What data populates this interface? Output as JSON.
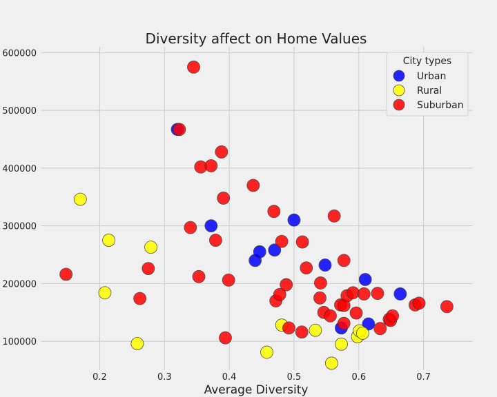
{
  "chart_data": {
    "type": "scatter",
    "title": "Diversity affect on Home Values",
    "xlabel": "Average Diversity",
    "ylabel": "",
    "xlim": [
      0.11,
      0.775
    ],
    "ylim": [
      50000,
      610000
    ],
    "xticks": [
      0.2,
      0.3,
      0.4,
      0.5,
      0.6,
      0.7
    ],
    "xtick_labels": [
      "0.2",
      "0.3",
      "0.4",
      "0.5",
      "0.6",
      "0.7"
    ],
    "yticks": [
      100000,
      200000,
      300000,
      400000,
      500000,
      600000
    ],
    "ytick_labels": [
      "100000",
      "200000",
      "300000",
      "400000",
      "500000",
      "600000"
    ],
    "grid": true,
    "legend": {
      "title": "City types",
      "position": "top-right"
    },
    "series": [
      {
        "name": "Urban",
        "color": "#0000ff",
        "points": [
          [
            0.32,
            467000
          ],
          [
            0.372,
            300000
          ],
          [
            0.44,
            240000
          ],
          [
            0.447,
            255000
          ],
          [
            0.47,
            258000
          ],
          [
            0.5,
            310000
          ],
          [
            0.548,
            232000
          ],
          [
            0.573,
            123000
          ],
          [
            0.61,
            207000
          ],
          [
            0.615,
            130000
          ],
          [
            0.664,
            182000
          ]
        ]
      },
      {
        "name": "Rural",
        "color": "#ffff00",
        "points": [
          [
            0.17,
            346000
          ],
          [
            0.208,
            184000
          ],
          [
            0.214,
            275000
          ],
          [
            0.258,
            96000
          ],
          [
            0.279,
            263000
          ],
          [
            0.458,
            81000
          ],
          [
            0.481,
            128000
          ],
          [
            0.533,
            119000
          ],
          [
            0.558,
            62000
          ],
          [
            0.573,
            95000
          ],
          [
            0.598,
            108000
          ],
          [
            0.601,
            118000
          ],
          [
            0.606,
            114000
          ]
        ]
      },
      {
        "name": "Suburban",
        "color": "#ff0000",
        "points": [
          [
            0.148,
            216000
          ],
          [
            0.262,
            174000
          ],
          [
            0.275,
            226000
          ],
          [
            0.323,
            467000
          ],
          [
            0.34,
            297000
          ],
          [
            0.345,
            575000
          ],
          [
            0.353,
            212000
          ],
          [
            0.356,
            402000
          ],
          [
            0.372,
            404000
          ],
          [
            0.379,
            275000
          ],
          [
            0.388,
            428000
          ],
          [
            0.391,
            348000
          ],
          [
            0.394,
            106000
          ],
          [
            0.399,
            206000
          ],
          [
            0.437,
            370000
          ],
          [
            0.469,
            325000
          ],
          [
            0.472,
            170000
          ],
          [
            0.478,
            181000
          ],
          [
            0.481,
            273000
          ],
          [
            0.488,
            198000
          ],
          [
            0.492,
            123000
          ],
          [
            0.512,
            116000
          ],
          [
            0.513,
            272000
          ],
          [
            0.519,
            227000
          ],
          [
            0.54,
            175000
          ],
          [
            0.541,
            201000
          ],
          [
            0.546,
            150000
          ],
          [
            0.556,
            144000
          ],
          [
            0.562,
            317000
          ],
          [
            0.572,
            163000
          ],
          [
            0.577,
            240000
          ],
          [
            0.577,
            162000
          ],
          [
            0.577,
            131000
          ],
          [
            0.582,
            179000
          ],
          [
            0.591,
            184000
          ],
          [
            0.596,
            149000
          ],
          [
            0.608,
            182000
          ],
          [
            0.629,
            183000
          ],
          [
            0.633,
            122000
          ],
          [
            0.647,
            138000
          ],
          [
            0.649,
            136000
          ],
          [
            0.652,
            144000
          ],
          [
            0.687,
            163000
          ],
          [
            0.693,
            166000
          ],
          [
            0.736,
            160000
          ]
        ]
      }
    ]
  }
}
